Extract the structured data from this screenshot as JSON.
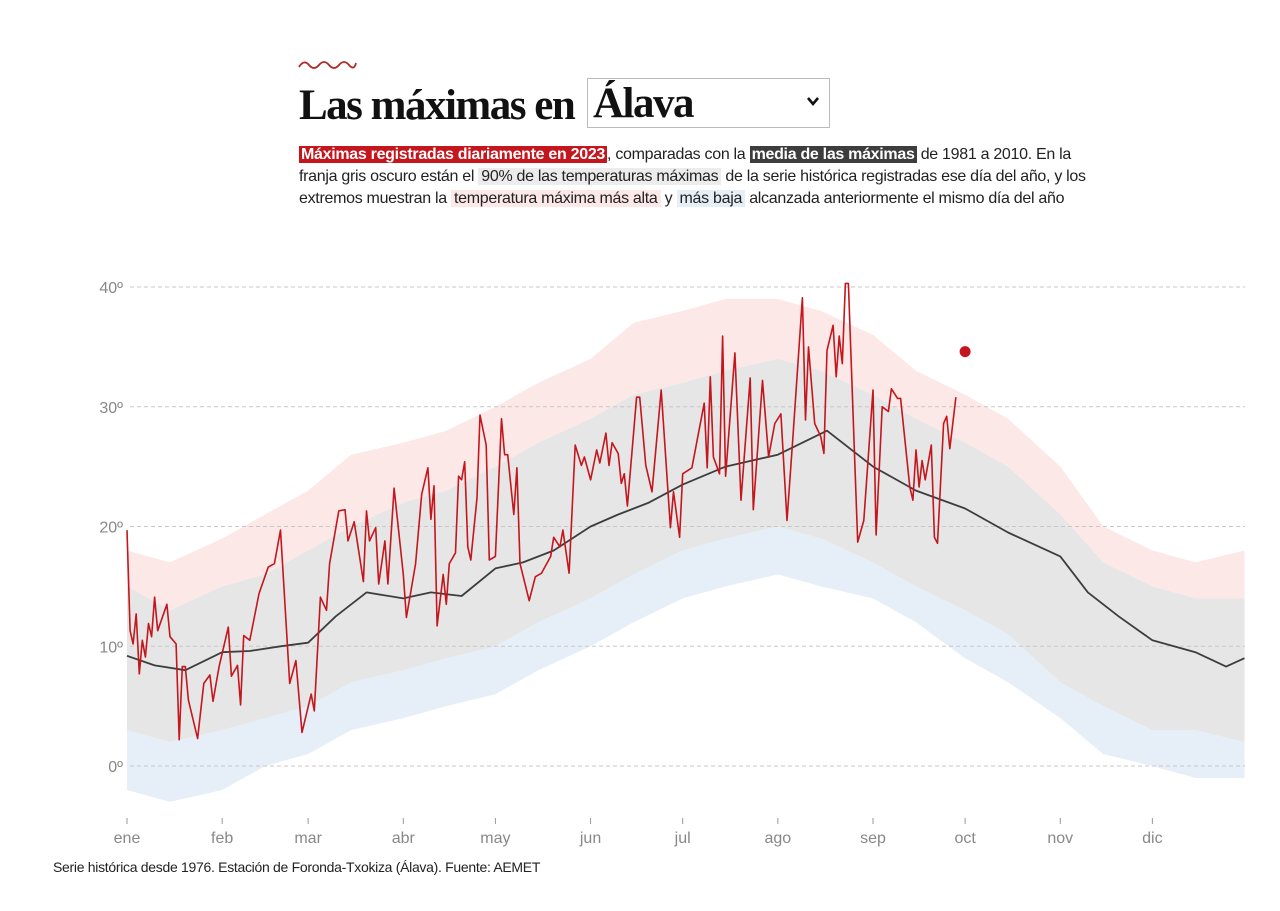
{
  "header": {
    "title_prefix": "Las máximas en",
    "province_select": {
      "selected": "Álava"
    }
  },
  "description": {
    "p1": "Máximas registradas diariamente en 2023",
    "p2": ", comparadas con la ",
    "p3": "media de las máximas",
    "p4": " de 1981 a 2010. En la franja gris oscuro están el ",
    "p5": "90% de las temperaturas máximas",
    "p6": " de la serie histórica registradas ese día del año, y los extremos muestran la ",
    "p7": "temperatura máxima más alta",
    "p8": " y ",
    "p9": "más baja",
    "p10": " alcanzada anteriormente el mismo día del año"
  },
  "footer": "Serie histórica desde 1976. Estación de Foronda-Txokiza (Álava). Fuente: AEMET",
  "colors": {
    "year2023": "#c4161c",
    "mean": "#3d3d3d",
    "p90_band": "#e6e6e6",
    "record_high": "#fde8e8",
    "record_low": "#e6eef8"
  },
  "chart_data": {
    "type": "line",
    "x_range": [
      "2023-01-01",
      "2023-12-31"
    ],
    "ylim": [
      -5,
      40
    ],
    "grid": true,
    "y_ticks": [
      {
        "value": 0,
        "label": "0º"
      },
      {
        "value": 10,
        "label": "10º"
      },
      {
        "value": 20,
        "label": "20º"
      },
      {
        "value": 30,
        "label": "30º"
      },
      {
        "value": 40,
        "label": "40º"
      }
    ],
    "x_ticks": [
      {
        "date": "2023-01-01",
        "label": "ene"
      },
      {
        "date": "2023-02-01",
        "label": "feb"
      },
      {
        "date": "2023-03-01",
        "label": "mar"
      },
      {
        "date": "2023-04-01",
        "label": "abr"
      },
      {
        "date": "2023-05-01",
        "label": "may"
      },
      {
        "date": "2023-06-01",
        "label": "jun"
      },
      {
        "date": "2023-07-01",
        "label": "jul"
      },
      {
        "date": "2023-08-01",
        "label": "ago"
      },
      {
        "date": "2023-09-01",
        "label": "sep"
      },
      {
        "date": "2023-10-01",
        "label": "oct"
      },
      {
        "date": "2023-11-01",
        "label": "nov"
      },
      {
        "date": "2023-12-01",
        "label": "dic"
      }
    ],
    "bands": {
      "dates": [
        "01-01",
        "01-15",
        "02-01",
        "02-15",
        "03-01",
        "03-15",
        "04-01",
        "04-15",
        "05-01",
        "05-15",
        "06-01",
        "06-15",
        "07-01",
        "07-15",
        "08-01",
        "08-15",
        "09-01",
        "09-15",
        "10-01",
        "10-15",
        "11-01",
        "11-15",
        "12-01",
        "12-15",
        "12-31"
      ],
      "record_high": [
        18,
        17,
        19,
        21,
        23,
        26,
        27,
        28,
        30,
        32,
        34,
        37,
        38,
        39,
        39,
        38,
        36,
        33,
        31,
        29,
        25,
        20,
        18,
        17,
        18
      ],
      "p95": [
        15,
        13,
        15,
        16,
        18,
        20,
        22,
        23,
        25,
        27,
        29,
        31,
        32,
        33,
        34,
        33,
        31,
        29,
        27,
        25,
        21,
        17,
        15,
        14,
        14
      ],
      "p5": [
        3,
        2,
        3,
        4,
        5,
        7,
        8,
        9,
        10,
        12,
        14,
        16,
        18,
        19,
        20,
        19,
        17,
        15,
        13,
        11,
        7,
        5,
        3,
        3,
        2
      ],
      "record_low": [
        -2,
        -3,
        -2,
        0,
        1,
        3,
        4,
        5,
        6,
        8,
        10,
        12,
        14,
        15,
        16,
        15,
        14,
        12,
        9,
        7,
        4,
        1,
        0,
        -1,
        -1
      ]
    },
    "mean": {
      "dates": [
        "01-01",
        "01-10",
        "01-20",
        "02-01",
        "02-10",
        "02-20",
        "03-01",
        "03-10",
        "03-20",
        "04-01",
        "04-10",
        "04-20",
        "05-01",
        "05-10",
        "05-20",
        "06-01",
        "06-10",
        "06-20",
        "07-01",
        "07-15",
        "08-01",
        "08-17",
        "09-01",
        "09-15",
        "10-01",
        "10-15",
        "11-01",
        "11-10",
        "11-20",
        "12-01",
        "12-15",
        "12-25",
        "12-31"
      ],
      "values": [
        9.2,
        8.4,
        8.0,
        9.5,
        9.6,
        10.0,
        10.3,
        12.5,
        14.5,
        14.0,
        14.5,
        14.2,
        16.5,
        17.0,
        18.0,
        20.0,
        21.0,
        22.0,
        23.5,
        25.0,
        26.0,
        28.0,
        25.0,
        23.0,
        21.5,
        19.5,
        17.5,
        14.5,
        12.5,
        10.5,
        9.5,
        8.3,
        9.0
      ]
    },
    "series_2023": {
      "dates": [
        "01-01",
        "01-02",
        "01-03",
        "01-04",
        "01-05",
        "01-06",
        "01-07",
        "01-08",
        "01-09",
        "01-10",
        "01-11",
        "01-14",
        "01-15",
        "01-17",
        "01-18",
        "01-19",
        "01-20",
        "01-21",
        "01-24",
        "01-26",
        "01-28",
        "01-29",
        "01-31",
        "02-03",
        "02-04",
        "02-06",
        "02-07",
        "02-08",
        "02-10",
        "02-13",
        "02-16",
        "02-18",
        "02-20",
        "02-23",
        "02-25",
        "02-27",
        "03-02",
        "03-03",
        "03-05",
        "03-07",
        "03-08",
        "03-11",
        "03-13",
        "03-14",
        "03-16",
        "03-19",
        "03-20",
        "03-21",
        "03-23",
        "03-24",
        "03-26",
        "03-27",
        "03-29",
        "04-01",
        "04-02",
        "04-05",
        "04-07",
        "04-09",
        "04-10",
        "04-11",
        "04-12",
        "04-14",
        "04-15",
        "04-16",
        "04-18",
        "04-19",
        "04-20",
        "04-21",
        "04-22",
        "04-23",
        "04-25",
        "04-26",
        "04-28",
        "04-29",
        "05-01",
        "05-03",
        "05-04",
        "05-05",
        "05-07",
        "05-08",
        "05-09",
        "05-12",
        "05-14",
        "05-16",
        "05-19",
        "05-20",
        "05-22",
        "05-23",
        "05-25",
        "05-27",
        "05-29",
        "05-30",
        "06-01",
        "06-03",
        "06-04",
        "06-06",
        "06-07",
        "06-08",
        "06-10",
        "06-11",
        "06-12",
        "06-13",
        "06-16",
        "06-17",
        "06-19",
        "06-21",
        "06-24",
        "06-27",
        "06-28",
        "06-30",
        "07-01",
        "07-04",
        "07-08",
        "07-09",
        "07-10",
        "07-11",
        "07-13",
        "07-14",
        "07-15",
        "07-18",
        "07-20",
        "07-23",
        "07-24",
        "07-27",
        "07-29",
        "07-31",
        "08-02",
        "08-04",
        "08-06",
        "08-09",
        "08-10",
        "08-11",
        "08-13",
        "08-15",
        "08-16",
        "08-17",
        "08-19",
        "08-20",
        "08-21",
        "08-22",
        "08-23",
        "08-24",
        "08-26",
        "08-27",
        "08-29",
        "09-01",
        "09-02",
        "09-04",
        "09-06",
        "09-07",
        "09-09",
        "09-10",
        "09-13",
        "09-14",
        "09-15",
        "09-16",
        "09-17",
        "09-18",
        "09-20",
        "09-21",
        "09-22",
        "09-24",
        "09-25",
        "09-26",
        "09-28"
      ],
      "values": [
        19.7,
        11.3,
        10.2,
        12.7,
        7.7,
        10.5,
        9.1,
        11.9,
        10.8,
        14.1,
        11.3,
        13.5,
        10.8,
        10.2,
        2.2,
        8.3,
        8.3,
        5.5,
        2.3,
        6.9,
        7.6,
        5.4,
        8.3,
        11.6,
        7.5,
        8.4,
        5.1,
        10.9,
        10.5,
        14.4,
        16.6,
        16.9,
        19.7,
        6.9,
        8.8,
        2.8,
        6.0,
        4.6,
        14.1,
        13.0,
        16.9,
        21.3,
        21.4,
        18.8,
        20.4,
        15.4,
        21.3,
        18.8,
        19.9,
        15.2,
        18.8,
        15.2,
        23.2,
        16.0,
        12.4,
        16.9,
        22.7,
        24.9,
        20.6,
        23.4,
        11.7,
        16.0,
        13.5,
        16.9,
        17.8,
        24.2,
        23.9,
        25.4,
        18.3,
        17.2,
        22.4,
        29.3,
        26.8,
        17.2,
        17.5,
        29.0,
        26.0,
        26.0,
        21.0,
        24.9,
        16.9,
        13.8,
        15.8,
        16.1,
        17.5,
        19.1,
        18.3,
        19.7,
        16.1,
        26.8,
        25.1,
        25.8,
        23.9,
        26.4,
        25.3,
        27.8,
        25.1,
        27.0,
        26.1,
        23.6,
        24.4,
        21.7,
        30.8,
        30.8,
        25.1,
        22.9,
        31.4,
        19.9,
        22.9,
        19.1,
        24.4,
        24.9,
        30.3,
        24.9,
        32.5,
        25.8,
        24.4,
        35.9,
        24.2,
        34.5,
        22.2,
        32.4,
        21.4,
        32.2,
        25.8,
        28.6,
        29.4,
        20.5,
        27.8,
        39.1,
        28.9,
        35.0,
        28.6,
        27.5,
        26.1,
        34.7,
        36.8,
        32.5,
        35.9,
        33.6,
        40.3,
        40.3,
        25.8,
        18.7,
        20.5,
        31.4,
        19.3,
        30.0,
        29.6,
        31.5,
        30.7,
        30.7,
        23.3,
        22.2,
        26.4,
        23.3,
        25.5,
        23.9,
        26.8,
        19.1,
        18.6,
        28.6,
        29.2,
        26.5,
        30.8
      ]
    },
    "highlight_point": {
      "date": "10-01",
      "value": 34.6
    }
  }
}
